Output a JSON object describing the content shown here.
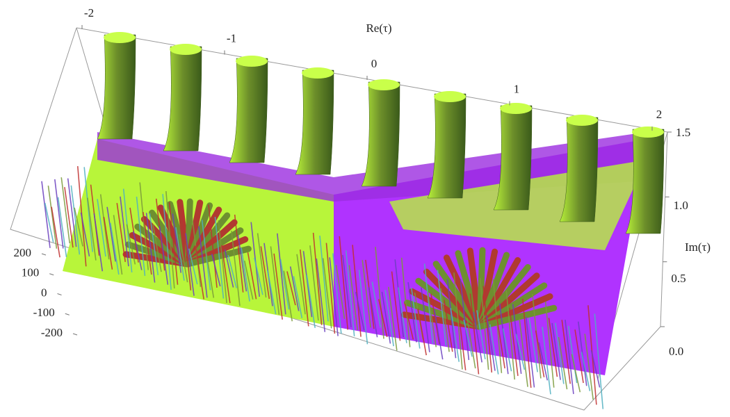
{
  "chart_data": {
    "type": "surface3d",
    "xlabel": "Re(τ)",
    "ylabel": "Im(τ)",
    "xlim": [
      -2,
      2
    ],
    "xticks": [
      -2,
      -1,
      0,
      1,
      2
    ],
    "ylim": [
      0,
      1.5
    ],
    "yticks": [
      {
        "value": 0,
        "label": "0.0"
      },
      {
        "value": 0.5,
        "label": "0.5"
      },
      {
        "value": 1,
        "label": "1.0"
      },
      {
        "value": 1.5,
        "label": "1.5"
      }
    ],
    "zlim": [
      -200,
      200
    ],
    "zticks": [
      -200,
      -100,
      0,
      100,
      200
    ]
  }
}
